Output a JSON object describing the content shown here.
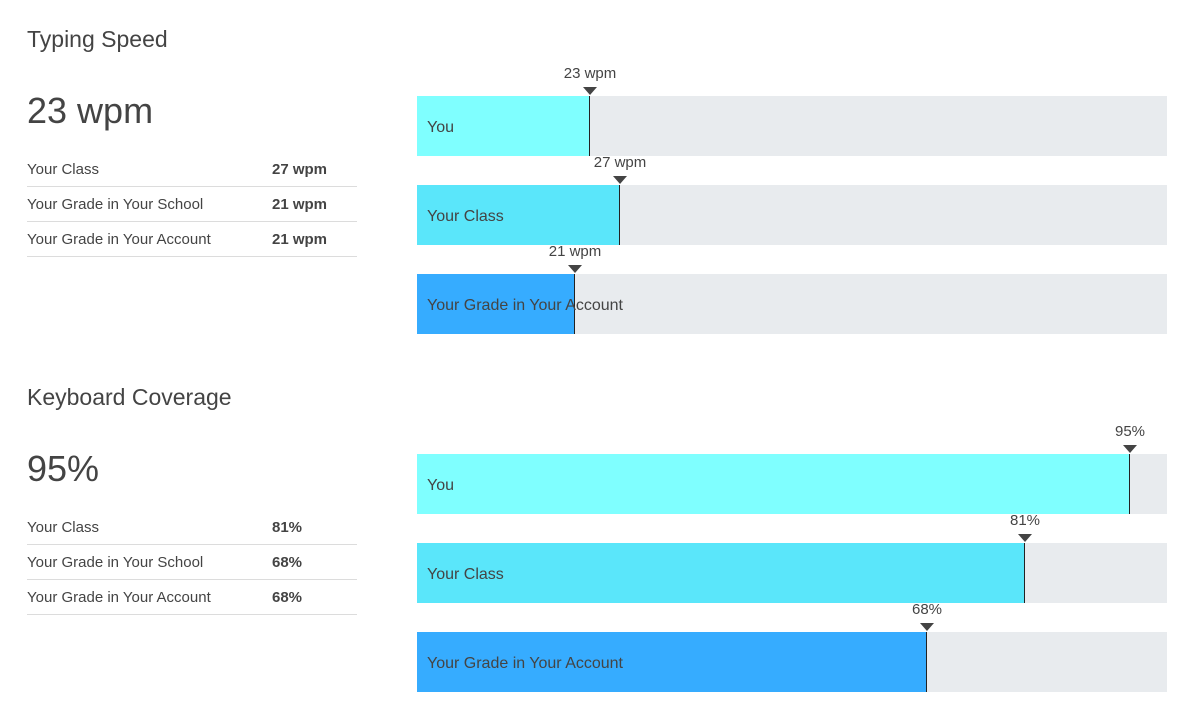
{
  "chart_data": [
    {
      "type": "bar",
      "title": "Typing Speed",
      "headline": "23 wpm",
      "unit": "wpm",
      "xlim": [
        0,
        100
      ],
      "table": [
        {
          "label": "Your Class",
          "value": "27 wpm"
        },
        {
          "label": "Your Grade in Your School",
          "value": "21 wpm"
        },
        {
          "label": "Your Grade in Your Account",
          "value": "21 wpm"
        }
      ],
      "bars": [
        {
          "label": "You",
          "value": 23,
          "marker": "23 wpm",
          "color": "#7fffff"
        },
        {
          "label": "Your Class",
          "value": 27,
          "marker": "27 wpm",
          "color": "#5ae6fa"
        },
        {
          "label": "Your Grade in Your Account",
          "value": 21,
          "marker": "21 wpm",
          "color": "#36acff"
        }
      ]
    },
    {
      "type": "bar",
      "title": "Keyboard Coverage",
      "headline": "95%",
      "unit": "%",
      "xlim": [
        0,
        100
      ],
      "table": [
        {
          "label": "Your Class",
          "value": "81%"
        },
        {
          "label": "Your Grade in Your School",
          "value": "68%"
        },
        {
          "label": "Your Grade in Your Account",
          "value": "68%"
        }
      ],
      "bars": [
        {
          "label": "You",
          "value": 95,
          "marker": "95%",
          "color": "#7fffff"
        },
        {
          "label": "Your Class",
          "value": 81,
          "marker": "81%",
          "color": "#5ae6fa"
        },
        {
          "label": "Your Grade in Your Account",
          "value": 68,
          "marker": "68%",
          "color": "#36acff"
        }
      ]
    }
  ]
}
